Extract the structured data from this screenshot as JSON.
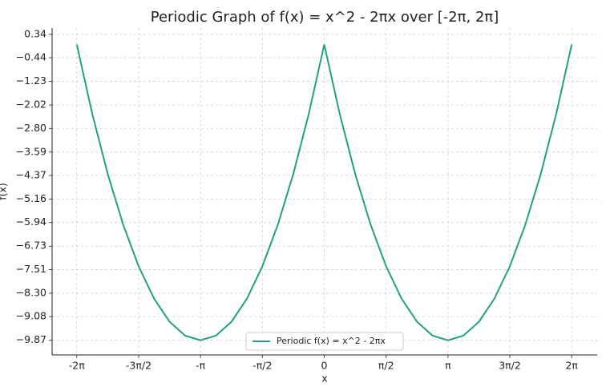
{
  "chart_data": {
    "type": "line",
    "title": "Periodic Graph of f(x) = x^2 - 2πx over [-2π, 2π]",
    "x_label": "x",
    "y_label": "f(x)",
    "x": [
      -6.2832,
      -5.8905,
      -5.4978,
      -5.1051,
      -4.7124,
      -4.3197,
      -3.927,
      -3.5343,
      -3.1416,
      -2.7489,
      -2.3562,
      -1.9635,
      -1.5708,
      -1.1781,
      -0.7854,
      -0.3927,
      0,
      0.3927,
      0.7854,
      1.1781,
      1.5708,
      1.9635,
      2.3562,
      2.7489,
      3.1416,
      3.5343,
      3.927,
      4.3197,
      4.7124,
      5.1051,
      5.4978,
      5.8905,
      6.2832
    ],
    "series": [
      {
        "name": "Periodic f(x) = x^2 - 2πx",
        "color": "#22a07f",
        "values": [
          0,
          -2.3132,
          -4.318,
          -6.0143,
          -7.4022,
          -8.4817,
          -9.2528,
          -9.7154,
          -9.8696,
          -9.7154,
          -9.2528,
          -8.4817,
          -7.4022,
          -6.0143,
          -4.318,
          -2.3132,
          0,
          -2.3132,
          -4.318,
          -6.0143,
          -7.4022,
          -8.4817,
          -9.2528,
          -9.7154,
          -9.8696,
          -9.7154,
          -9.2528,
          -8.4817,
          -7.4022,
          -6.0143,
          -4.318,
          -2.3132,
          0
        ]
      }
    ],
    "xlim": [
      -6.91,
      6.93
    ],
    "ylim": [
      -10.36,
      0.55
    ],
    "xticks": [
      {
        "value": -6.2832,
        "label": "-2π"
      },
      {
        "value": -4.7124,
        "label": "-3π/2"
      },
      {
        "value": -3.1416,
        "label": "-π"
      },
      {
        "value": -1.5708,
        "label": "-π/2"
      },
      0,
      {
        "value": 1.5708,
        "label": "π/2"
      },
      {
        "value": 3.1416,
        "label": "π"
      },
      {
        "value": 4.7124,
        "label": "3π/2"
      },
      {
        "value": 6.2832,
        "label": "2π"
      }
    ],
    "yticks": [
      0.34,
      {
        "value": -0.44,
        "label": "−0.44"
      },
      {
        "value": -1.23,
        "label": "−1.23"
      },
      {
        "value": -2.02,
        "label": "−2.02"
      },
      {
        "value": -2.8,
        "label": "−2.80"
      },
      {
        "value": -3.59,
        "label": "−3.59"
      },
      {
        "value": -4.37,
        "label": "−4.37"
      },
      {
        "value": -5.16,
        "label": "−5.16"
      },
      {
        "value": -5.94,
        "label": "−5.94"
      },
      {
        "value": -6.73,
        "label": "−6.73"
      },
      {
        "value": -7.51,
        "label": "−7.51"
      },
      {
        "value": -8.3,
        "label": "−8.30"
      },
      {
        "value": -9.08,
        "label": "−9.08"
      },
      {
        "value": -9.87,
        "label": "−9.87"
      }
    ],
    "grid": true,
    "legend": "lower center"
  }
}
